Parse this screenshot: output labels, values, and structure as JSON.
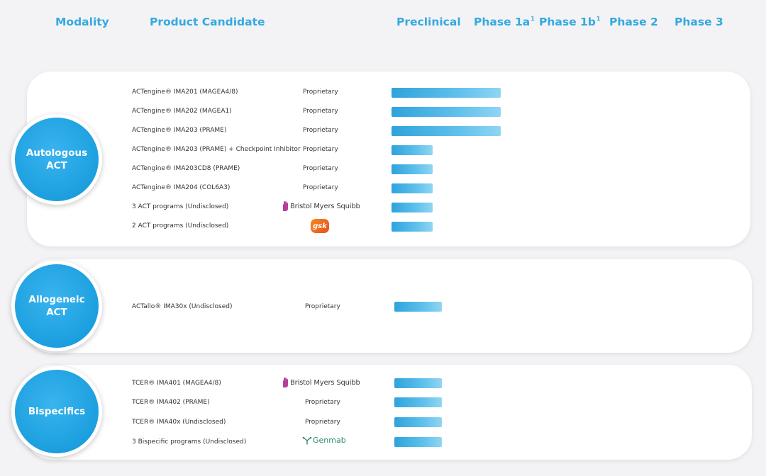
{
  "headers": {
    "modality": "Modality",
    "product_candidate": "Product Candidate",
    "preclinical": "Preclinical",
    "phase1a": "Phase 1a",
    "phase1a_sup": "1",
    "phase1b": "Phase 1b",
    "phase1b_sup": "1",
    "phase2": "Phase 2",
    "phase3": "Phase 3"
  },
  "phases": [
    "Preclinical",
    "Phase 1a",
    "Phase 1b",
    "Phase 2",
    "Phase 3"
  ],
  "groups": [
    {
      "modality": "Autologous\nACT",
      "rows": [
        {
          "name": "ACTengine® IMA201 (MAGEA4/8)",
          "owner": "Proprietary",
          "logo": "",
          "progress_phases": 1.6
        },
        {
          "name": "ACTengine® IMA202 (MAGEA1)",
          "owner": "Proprietary",
          "logo": "",
          "progress_phases": 1.6
        },
        {
          "name": "ACTengine® IMA203 (PRAME)",
          "owner": "Proprietary",
          "logo": "",
          "progress_phases": 1.6
        },
        {
          "name": "ACTengine® IMA203 (PRAME) + Checkpoint Inhibitor",
          "owner": "Proprietary",
          "logo": "",
          "progress_phases": 0.6
        },
        {
          "name": "ACTengine® IMA203CD8 (PRAME)",
          "owner": "Proprietary",
          "logo": "",
          "progress_phases": 0.6
        },
        {
          "name": "ACTengine® IMA204 (COL6A3)",
          "owner": "Proprietary",
          "logo": "",
          "progress_phases": 0.6
        },
        {
          "name": "3 ACT programs (Undisclosed)",
          "owner": "Bristol Myers Squibb",
          "logo": "bms",
          "progress_phases": 0.6
        },
        {
          "name": "2 ACT programs (Undisclosed)",
          "owner": "gsk",
          "logo": "gsk",
          "progress_phases": 0.6
        }
      ]
    },
    {
      "modality": "Allogeneic\nACT",
      "rows": [
        {
          "name": "ACTallo® IMA30x (Undisclosed)",
          "owner": "Proprietary",
          "logo": "",
          "progress_phases": 0.7
        }
      ]
    },
    {
      "modality": "Bispecifics",
      "rows": [
        {
          "name": "TCER® IMA401 (MAGEA4/8)",
          "owner": "Bristol Myers Squibb",
          "logo": "bms",
          "progress_phases": 0.7
        },
        {
          "name": "TCER® IMA402 (PRAME)",
          "owner": "Proprietary",
          "logo": "",
          "progress_phases": 0.7
        },
        {
          "name": "TCER® IMA40x (Undisclosed)",
          "owner": "Proprietary",
          "logo": "",
          "progress_phases": 0.7
        },
        {
          "name": "3 Bispecific programs (Undisclosed)",
          "owner": "Genmab",
          "logo": "genmab",
          "progress_phases": 0.7
        }
      ]
    }
  ],
  "colors": {
    "accent": "#35a9e0",
    "circle": "#1c9fdf",
    "bar_start": "#2ea3dc",
    "bar_end": "#8fd5f3",
    "bms_purple": "#b5409a",
    "gsk_orange": "#f26b1d",
    "genmab_green": "#2a8a73"
  }
}
